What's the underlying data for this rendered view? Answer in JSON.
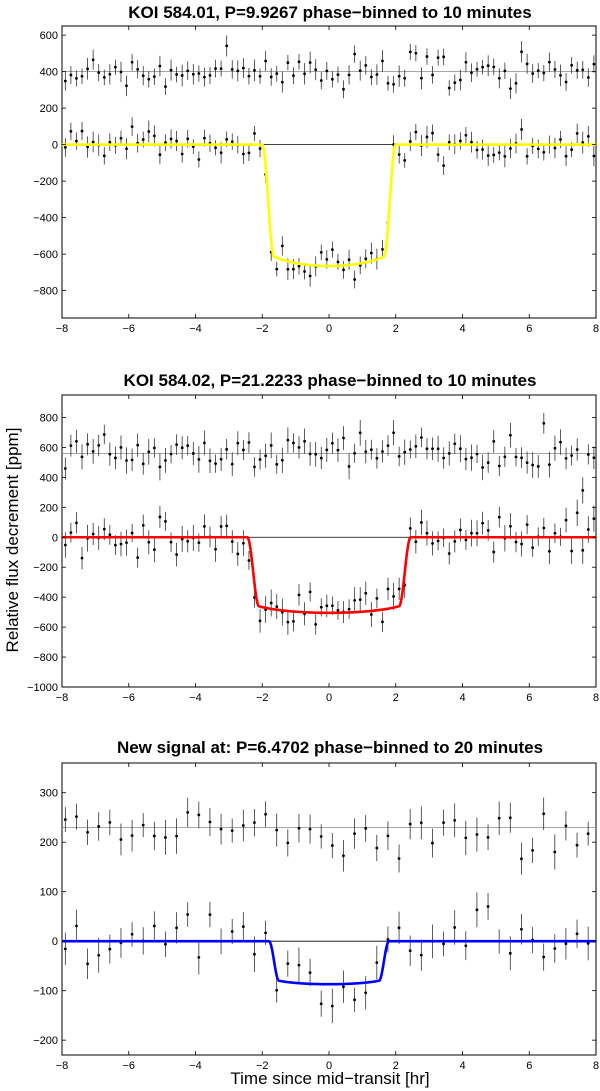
{
  "figure": {
    "ylabel": "Relative flux decrement [ppm]",
    "xlabel": "Time since mid−transit [hr]"
  },
  "chart_data": [
    {
      "type": "scatter",
      "title": "KOI 584.01, P=9.9267 phase−binned to 10 minutes",
      "xlim": [
        -8,
        8
      ],
      "ylim": [
        -950,
        650
      ],
      "xticks": [
        -8,
        -6,
        -4,
        -2,
        0,
        2,
        4,
        6,
        8
      ],
      "yticks": [
        -800,
        -600,
        -400,
        -200,
        0,
        200,
        400,
        600
      ],
      "xlabel": "",
      "ylabel": "",
      "offset_ref": 400,
      "model": {
        "color": "#ffff00",
        "depth": 665,
        "t14": 4.0,
        "ingress": 0.35,
        "shape": "round"
      },
      "errorbar": 50,
      "data_summary": "binned points, upper copy offset by +400 ppm; transit depth ~665 ppm, duration ~4 hr"
    },
    {
      "type": "scatter",
      "title": "KOI 584.02, P=21.2233 phase−binned to 10 minutes",
      "xlim": [
        -8,
        8
      ],
      "ylim": [
        -1000,
        950
      ],
      "xticks": [
        -8,
        -6,
        -4,
        -2,
        0,
        2,
        4,
        6,
        8
      ],
      "yticks": [
        -1000,
        -800,
        -600,
        -400,
        -200,
        0,
        200,
        400,
        600,
        800
      ],
      "xlabel": "",
      "ylabel": "",
      "offset_ref": 560,
      "model": {
        "color": "#ff0000",
        "depth": 505,
        "t14": 4.9,
        "ingress": 0.35,
        "shape": "round"
      },
      "errorbar": 75,
      "data_summary": "binned points, upper copy offset by +560 ppm; transit depth ~505 ppm, duration ~4.9 hr"
    },
    {
      "type": "scatter",
      "title": "New signal at: P=6.4702 phase−binned to 20 minutes",
      "xlim": [
        -8,
        8
      ],
      "ylim": [
        -230,
        360
      ],
      "xticks": [
        -8,
        -6,
        -4,
        -2,
        0,
        2,
        4,
        6,
        8
      ],
      "yticks": [
        -200,
        -100,
        0,
        100,
        200,
        300
      ],
      "xlabel": "",
      "ylabel": "",
      "offset_ref": 230,
      "model": {
        "color": "#0000ff",
        "depth": 87,
        "t14": 3.6,
        "ingress": 0.3,
        "shape": "round"
      },
      "errorbar": 30,
      "data_summary": "binned points, upper copy offset by +230 ppm; transit depth ~87 ppm, duration ~3.6 hr"
    }
  ]
}
